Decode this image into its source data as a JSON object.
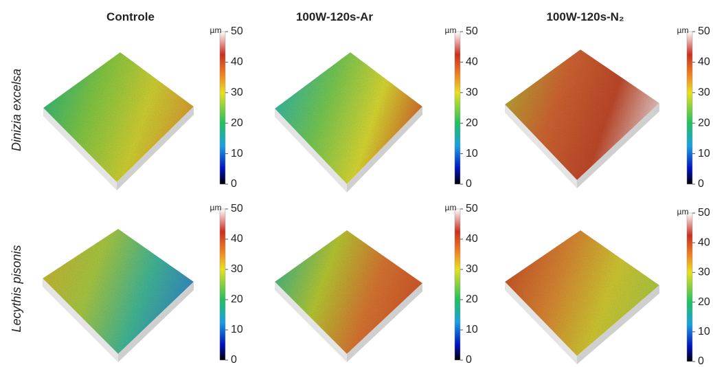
{
  "columns": [
    "Controle",
    "100W-120s-Ar",
    "100W-120s-N₂"
  ],
  "rows": [
    "Dinizia excelsa",
    "Lecythis pisonis"
  ],
  "colorbar": {
    "unit": "µm",
    "lim": [
      0,
      50
    ],
    "ticks": [
      0,
      10,
      20,
      30,
      40,
      50
    ]
  }
}
